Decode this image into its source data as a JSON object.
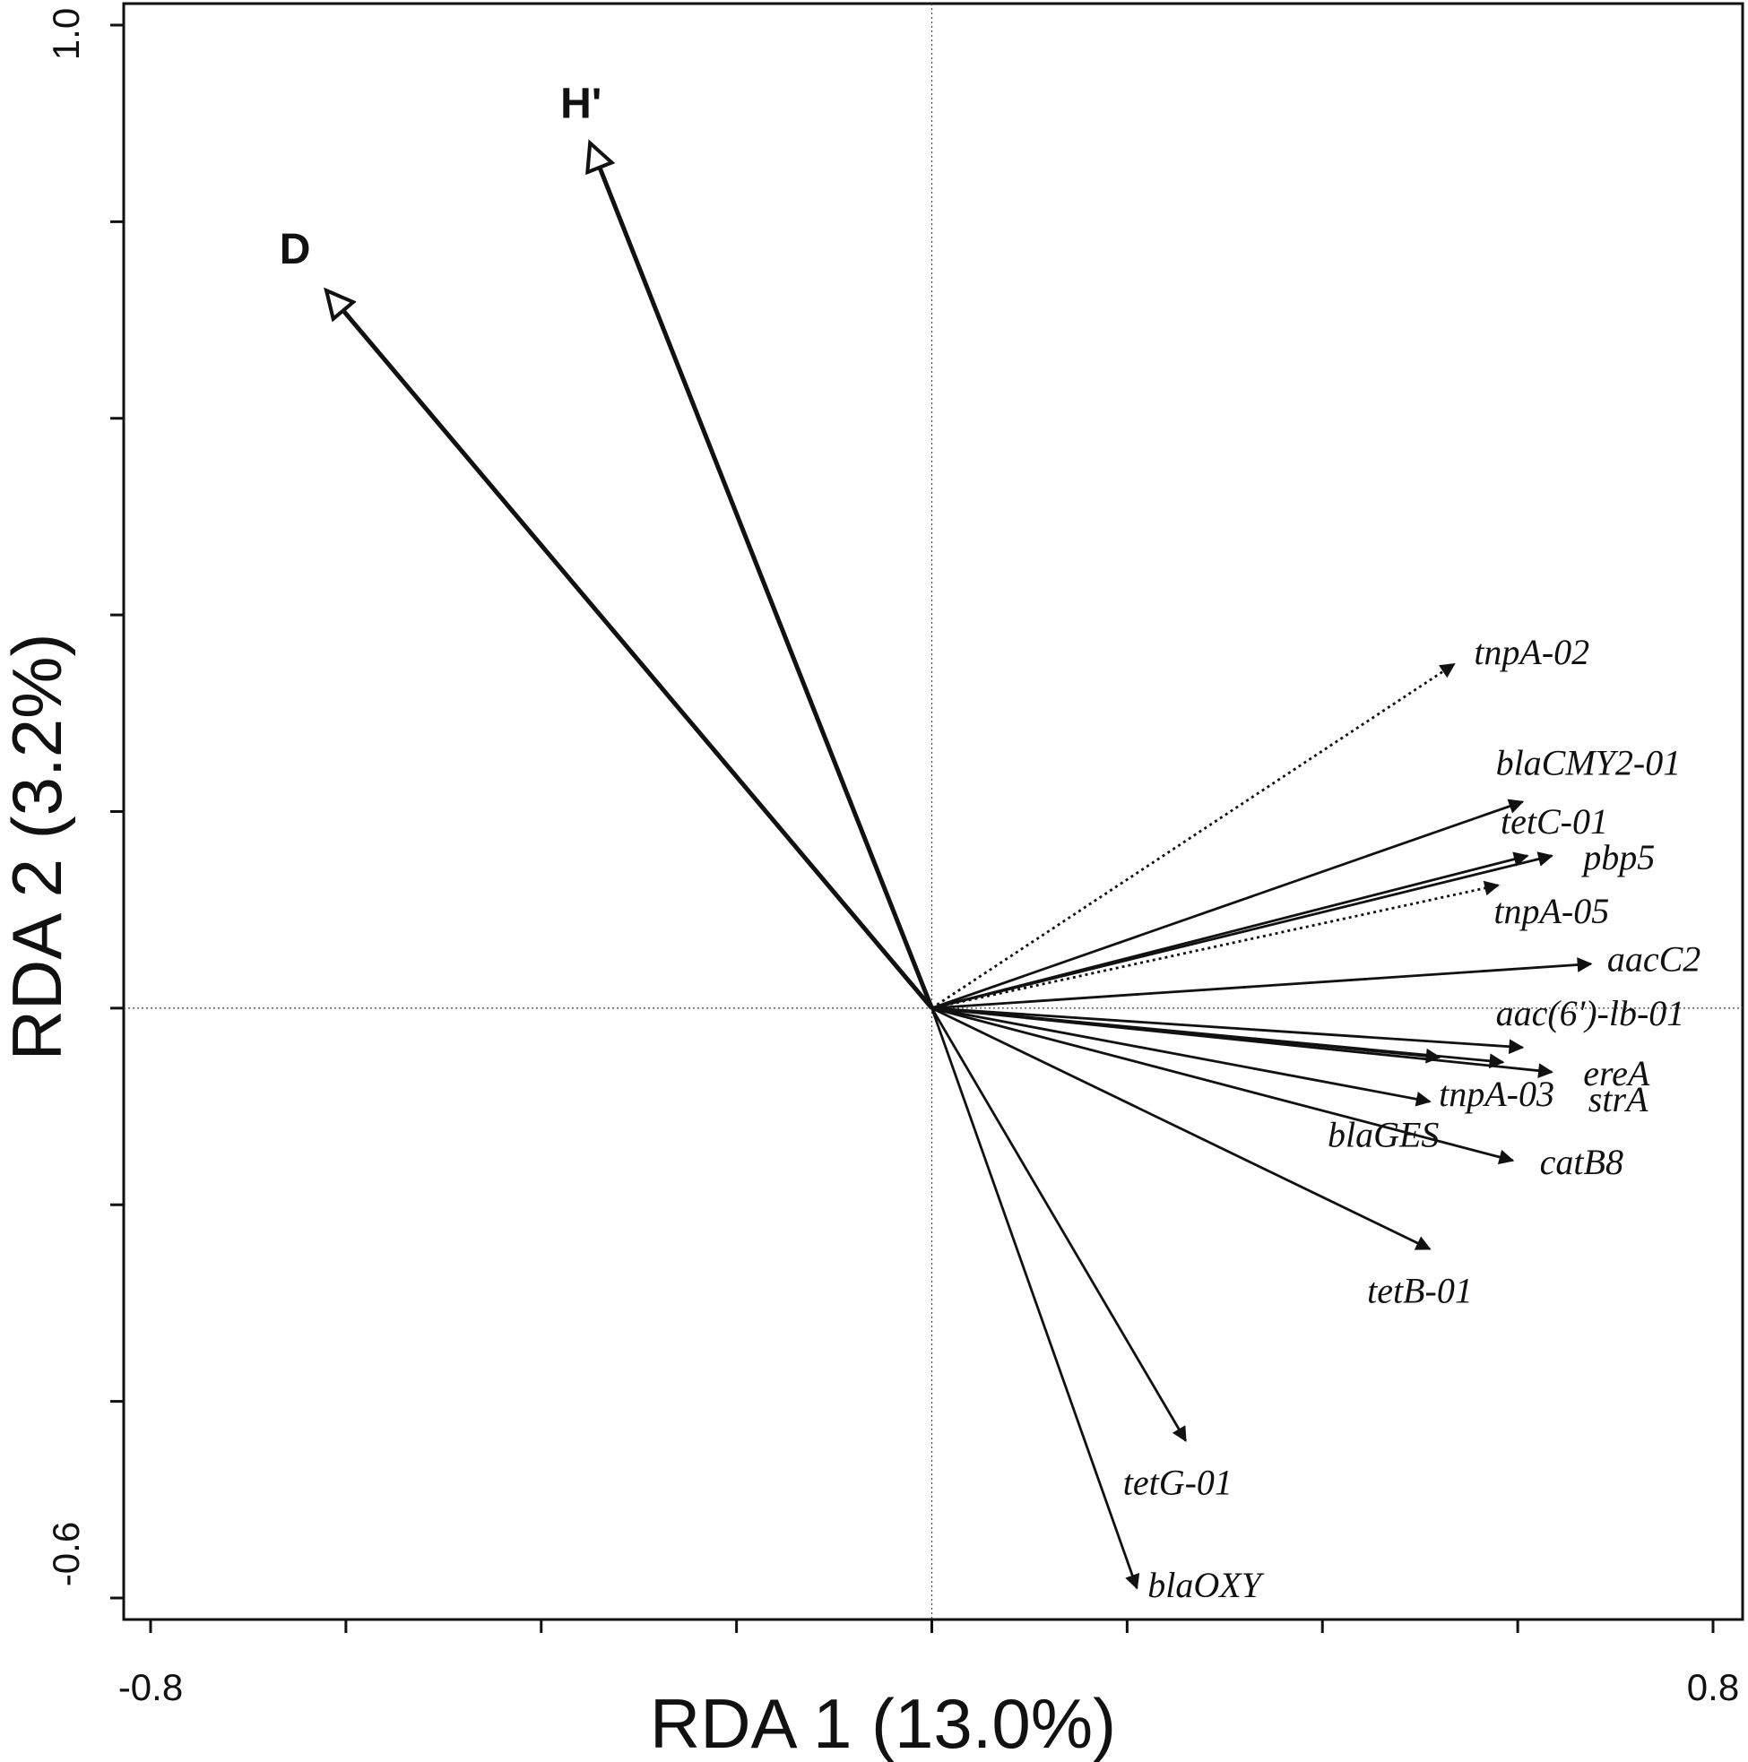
{
  "chart_data": {
    "type": "scatter",
    "subtype": "rda-biplot",
    "title": "",
    "xlabel": "RDA 1 (13.0%)",
    "ylabel": "RDA 2 (3.2%)",
    "xlim": [
      -0.8,
      0.8
    ],
    "ylim": [
      -0.6,
      1.0
    ],
    "x_tick_labels": [
      "-0.8",
      "0.8"
    ],
    "y_tick_labels": [
      "-0.6",
      "1.0"
    ],
    "x_ticks": [
      -0.8,
      -0.6,
      -0.4,
      -0.2,
      0,
      0.2,
      0.4,
      0.6,
      0.8
    ],
    "y_ticks": [
      -0.6,
      -0.4,
      -0.2,
      0,
      0.2,
      0.4,
      0.6,
      0.8,
      1.0
    ],
    "diversity_vectors": [
      {
        "name": "D",
        "x": -0.62,
        "y": 0.73
      },
      {
        "name": "H'",
        "x": -0.35,
        "y": 0.88
      }
    ],
    "gene_vectors": [
      {
        "name": "tnpA-02",
        "x": 0.535,
        "y": 0.35,
        "dotted": true
      },
      {
        "name": "blaCMY2-01",
        "x": 0.605,
        "y": 0.21,
        "dotted": false
      },
      {
        "name": "tetC-01",
        "x": 0.61,
        "y": 0.155,
        "dotted": false
      },
      {
        "name": "pbp5",
        "x": 0.635,
        "y": 0.155,
        "dotted": false
      },
      {
        "name": "tnpA-05",
        "x": 0.58,
        "y": 0.125,
        "dotted": true
      },
      {
        "name": "aacC2",
        "x": 0.675,
        "y": 0.045,
        "dotted": false
      },
      {
        "name": "aac(6')-lb-01",
        "x": 0.605,
        "y": -0.04,
        "dotted": false
      },
      {
        "name": "ereA",
        "x": 0.635,
        "y": -0.065,
        "dotted": false
      },
      {
        "name": "strA",
        "x": 0.585,
        "y": -0.055,
        "dotted": false
      },
      {
        "name": "blaGES",
        "x": 0.52,
        "y": -0.05,
        "dotted": false
      },
      {
        "name": "tnpA-03",
        "x": 0.51,
        "y": -0.095,
        "dotted": false
      },
      {
        "name": "catB8",
        "x": 0.595,
        "y": -0.155,
        "dotted": false
      },
      {
        "name": "tetB-01",
        "x": 0.51,
        "y": -0.245,
        "dotted": false
      },
      {
        "name": "tetG-01",
        "x": 0.26,
        "y": -0.44,
        "dotted": false
      },
      {
        "name": "blaOXY",
        "x": 0.21,
        "y": -0.59,
        "dotted": false
      }
    ]
  }
}
